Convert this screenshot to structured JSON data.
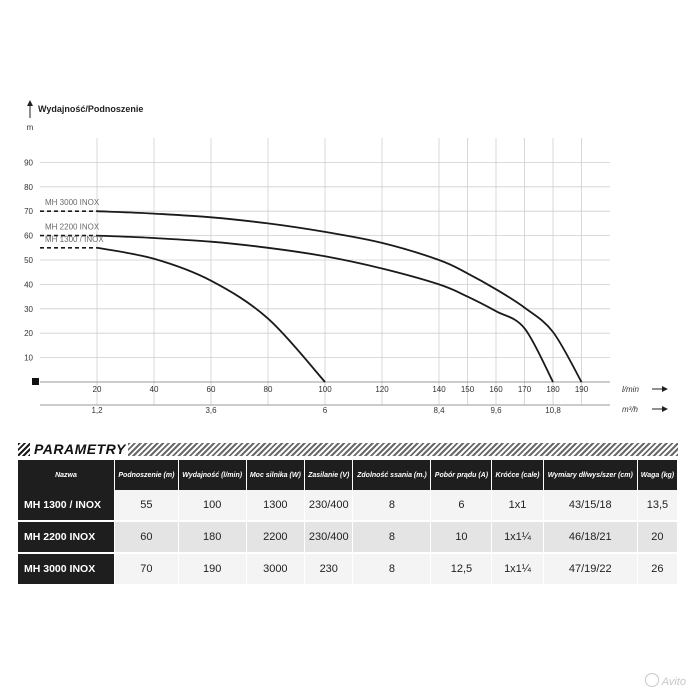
{
  "chart_data": {
    "type": "line",
    "ylabel": "Wydajność/Podnoszenie",
    "yunit": "m",
    "xunit_primary": "l/min",
    "xunit_secondary": "m³/h",
    "ylim": [
      0,
      100
    ],
    "yticks": [
      10,
      20,
      30,
      40,
      50,
      60,
      70,
      80,
      90
    ],
    "xlim": [
      0,
      200
    ],
    "xticks": [
      20,
      40,
      60,
      80,
      100,
      120,
      140,
      150,
      160,
      170,
      180,
      190
    ],
    "xticks_secondary": [
      {
        "at": 20,
        "label": "1,2"
      },
      {
        "at": 60,
        "label": "3,6"
      },
      {
        "at": 100,
        "label": "6"
      },
      {
        "at": 140,
        "label": "8,4"
      },
      {
        "at": 160,
        "label": "9,6"
      },
      {
        "at": 180,
        "label": "10,8"
      }
    ],
    "grid": true,
    "series": [
      {
        "name": "MH 3000 INOX",
        "x": [
          0,
          20,
          40,
          60,
          80,
          100,
          120,
          140,
          150,
          160,
          170,
          180,
          190
        ],
        "y": [
          70,
          70,
          69,
          67.5,
          65,
          61.5,
          57,
          50,
          44.5,
          38,
          30.5,
          20.5,
          0
        ]
      },
      {
        "name": "MH 2200 INOX",
        "x": [
          0,
          20,
          40,
          60,
          80,
          100,
          120,
          140,
          150,
          160,
          170,
          180
        ],
        "y": [
          60,
          60,
          59,
          57.5,
          55,
          51.5,
          46.5,
          40,
          35,
          29,
          22,
          0
        ]
      },
      {
        "name": "MH 1300 / INOX",
        "x": [
          0,
          20,
          40,
          60,
          80,
          100
        ],
        "y": [
          55,
          55,
          50.5,
          41.5,
          26,
          0
        ]
      }
    ]
  },
  "section_title": "PARAMETRY",
  "table": {
    "headers": [
      "Nazwa",
      "Podnoszenie (m)",
      "Wydajność (l/min)",
      "Moc silnika (W)",
      "Zasilanie (V)",
      "Zdolność ssania (m.)",
      "Pobór prądu (A)",
      "Króćce (cale)",
      "Wymiary dł/wys/szer (cm)",
      "Waga (kg)"
    ],
    "rows": [
      [
        "MH 1300 / INOX",
        "55",
        "100",
        "1300",
        "230/400",
        "8",
        "6",
        "1x1",
        "43/15/18",
        "13,5"
      ],
      [
        "MH 2200 INOX",
        "60",
        "180",
        "2200",
        "230/400",
        "8",
        "10",
        "1x1¼",
        "46/18/21",
        "20"
      ],
      [
        "MH 3000 INOX",
        "70",
        "190",
        "3000",
        "230",
        "8",
        "12,5",
        "1x1¼",
        "47/19/22",
        "26"
      ]
    ]
  },
  "watermark": "Avito"
}
